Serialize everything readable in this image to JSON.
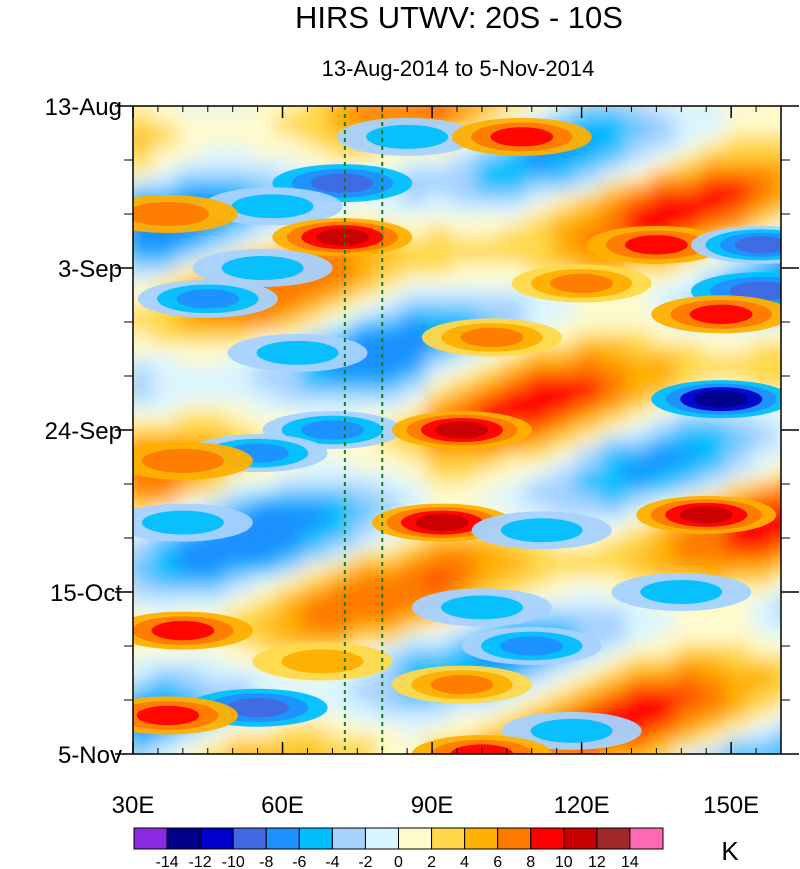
{
  "chart_data": {
    "type": "heatmap",
    "title": "HIRS UTWV: 20S - 10S",
    "subtitle": "13-Aug-2014 to 5-Nov-2014",
    "xlim": [
      30,
      160
    ],
    "x_ticks": [
      {
        "value": 30,
        "label": "30E"
      },
      {
        "value": 60,
        "label": "60E"
      },
      {
        "value": 90,
        "label": "90E"
      },
      {
        "value": 120,
        "label": "120E"
      },
      {
        "value": 150,
        "label": "150E"
      }
    ],
    "y_ticks": [
      {
        "day": 0,
        "label": "13-Aug"
      },
      {
        "day": 21,
        "label": "3-Sep"
      },
      {
        "day": 42,
        "label": "24-Sep"
      },
      {
        "day": 63,
        "label": "15-Oct"
      },
      {
        "day": 84,
        "label": "5-Nov"
      }
    ],
    "y_days_total": 84,
    "reference_lines_lon": [
      72.5,
      80
    ],
    "colorbar": {
      "unit": "K",
      "levels": [
        -14,
        -12,
        -10,
        -8,
        -6,
        -4,
        -2,
        0,
        2,
        4,
        6,
        8,
        10,
        12,
        14
      ],
      "colors": [
        "#8a2be2",
        "#00008b",
        "#0000cd",
        "#4169e1",
        "#1e90ff",
        "#00bfff",
        "#a6d2ff",
        "#d9f5ff",
        "#fffacd",
        "#ffd94a",
        "#ffb000",
        "#ff7a00",
        "#ff0000",
        "#c80000",
        "#a02828",
        "#ff69b4"
      ],
      "tick_labels": [
        "-14",
        "-12",
        "-10",
        "-8",
        "-6",
        "-4",
        "-2",
        "0",
        "2",
        "4",
        "6",
        "8",
        "10",
        "12",
        "14"
      ]
    },
    "features": [
      {
        "day": 4,
        "lon": 85,
        "value": -6
      },
      {
        "day": 4,
        "lon": 108,
        "value": 8
      },
      {
        "day": 10,
        "lon": 72,
        "value": -9
      },
      {
        "day": 13,
        "lon": 58,
        "value": -6
      },
      {
        "day": 14,
        "lon": 37,
        "value": 6
      },
      {
        "day": 17,
        "lon": 72,
        "value": 11
      },
      {
        "day": 18,
        "lon": 135,
        "value": 8
      },
      {
        "day": 18,
        "lon": 156,
        "value": -10
      },
      {
        "day": 21,
        "lon": 56,
        "value": -5
      },
      {
        "day": 23,
        "lon": 120,
        "value": 7
      },
      {
        "day": 24,
        "lon": 156,
        "value": -9
      },
      {
        "day": 25,
        "lon": 45,
        "value": -7
      },
      {
        "day": 27,
        "lon": 148,
        "value": 9
      },
      {
        "day": 30,
        "lon": 102,
        "value": 7
      },
      {
        "day": 32,
        "lon": 63,
        "value": -6
      },
      {
        "day": 38,
        "lon": 148,
        "value": -13
      },
      {
        "day": 42,
        "lon": 70,
        "value": -7
      },
      {
        "day": 42,
        "lon": 96,
        "value": 10
      },
      {
        "day": 45,
        "lon": 55,
        "value": -8
      },
      {
        "day": 46,
        "lon": 40,
        "value": 6
      },
      {
        "day": 53,
        "lon": 145,
        "value": 11
      },
      {
        "day": 54,
        "lon": 92,
        "value": 10
      },
      {
        "day": 54,
        "lon": 40,
        "value": -5
      },
      {
        "day": 55,
        "lon": 112,
        "value": -5
      },
      {
        "day": 63,
        "lon": 140,
        "value": -5
      },
      {
        "day": 65,
        "lon": 100,
        "value": -6
      },
      {
        "day": 68,
        "lon": 40,
        "value": 9
      },
      {
        "day": 70,
        "lon": 110,
        "value": -7
      },
      {
        "day": 72,
        "lon": 68,
        "value": 5
      },
      {
        "day": 75,
        "lon": 96,
        "value": 7
      },
      {
        "day": 78,
        "lon": 55,
        "value": -9
      },
      {
        "day": 79,
        "lon": 37,
        "value": 9
      },
      {
        "day": 81,
        "lon": 118,
        "value": -5
      },
      {
        "day": 84,
        "lon": 100,
        "value": 8
      }
    ]
  }
}
